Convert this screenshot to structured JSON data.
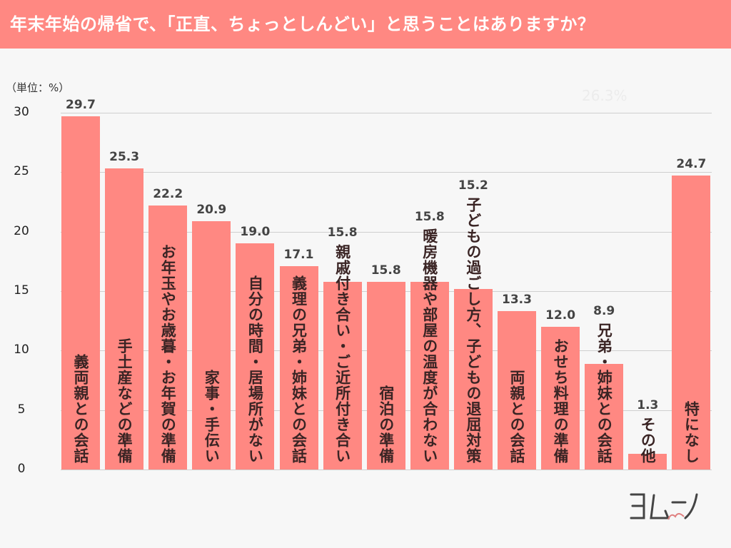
{
  "title": "年末年始の帰省で、「正直、ちょっとしんどい」と思うことはありますか？",
  "unit_label": "（単位：%）",
  "faint_annotation": "26.3%",
  "logo_text": "ヨムーノ",
  "colors": {
    "bar": "#ff8882",
    "title_bg": "#ff8882",
    "text": "#3a2424"
  },
  "chart_data": {
    "type": "bar",
    "title": "年末年始の帰省で、「正直、ちょっとしんどい」と思うことはありますか？",
    "ylabel": "（単位：%）",
    "ylim": [
      0,
      30
    ],
    "yticks": [
      "0",
      "5",
      "10",
      "15",
      "20",
      "25",
      "30"
    ],
    "grid": true,
    "categories": [
      "義両親との会話",
      "手土産などの準備",
      "お年玉やお歳暮・お年賀の準備",
      "家事・手伝い",
      "自分の時間・居場所がない",
      "義理の兄弟・姉妹との会話",
      "親戚付き合い・ご近所付き合い",
      "宿泊の準備",
      "暖房機器や部屋の温度が合わない",
      "子どもの過ごし方、子どもの退屈対策",
      "両親との会話",
      "おせち料理の準備",
      "兄弟・姉妹との会話",
      "その他",
      "特になし"
    ],
    "values": [
      29.7,
      25.3,
      22.2,
      20.9,
      19.0,
      17.1,
      15.8,
      15.8,
      15.8,
      15.2,
      13.3,
      12.0,
      8.9,
      1.3,
      24.7
    ],
    "value_labels": [
      "29.7",
      "25.3",
      "22.2",
      "20.9",
      "19.0",
      "17.1",
      "15.8",
      "15.8",
      "15.8",
      "15.2",
      "13.3",
      "12.0",
      "8.9",
      "1.3",
      "24.7"
    ]
  }
}
